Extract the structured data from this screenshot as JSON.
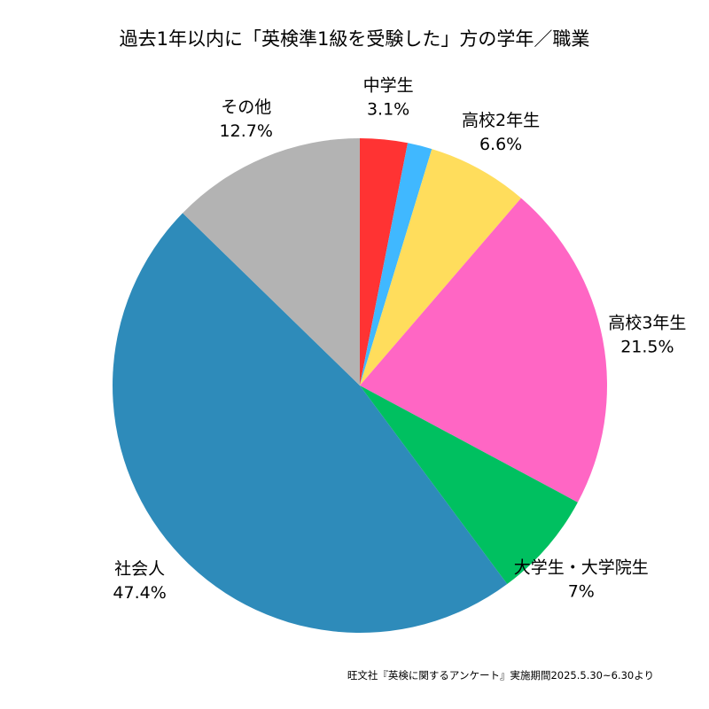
{
  "title": "過去1年以内に「英検準1級を受験した」方の学年／職業",
  "source_note": "旺文社『英検に関するアンケート』実施期間2025.5.30~6.30より",
  "chart_data": {
    "type": "pie",
    "title": "過去1年以内に「英検準1級を受験した」方の学年／職業",
    "start": "12 o'clock, clockwise",
    "slices": [
      {
        "label": "中学生",
        "value": 3.1,
        "value_label": "3.1%",
        "color": "#ff3333",
        "labeled": true
      },
      {
        "label": "",
        "value": 1.6,
        "value_label": "",
        "color": "#40b8ff",
        "labeled": false
      },
      {
        "label": "高校2年生",
        "value": 6.6,
        "value_label": "6.6%",
        "color": "#ffdd5c",
        "labeled": true
      },
      {
        "label": "高校3年生",
        "value": 21.5,
        "value_label": "21.5%",
        "color": "#ff66c4",
        "labeled": true
      },
      {
        "label": "大学生・大学院生",
        "value": 7,
        "value_label": "7%",
        "color": "#00c060",
        "labeled": true
      },
      {
        "label": "社会人",
        "value": 47.4,
        "value_label": "47.4%",
        "color": "#2e8bba",
        "labeled": true
      },
      {
        "label": "その他",
        "value": 12.7,
        "value_label": "12.7%",
        "color": "#b3b3b3",
        "labeled": true
      }
    ]
  }
}
